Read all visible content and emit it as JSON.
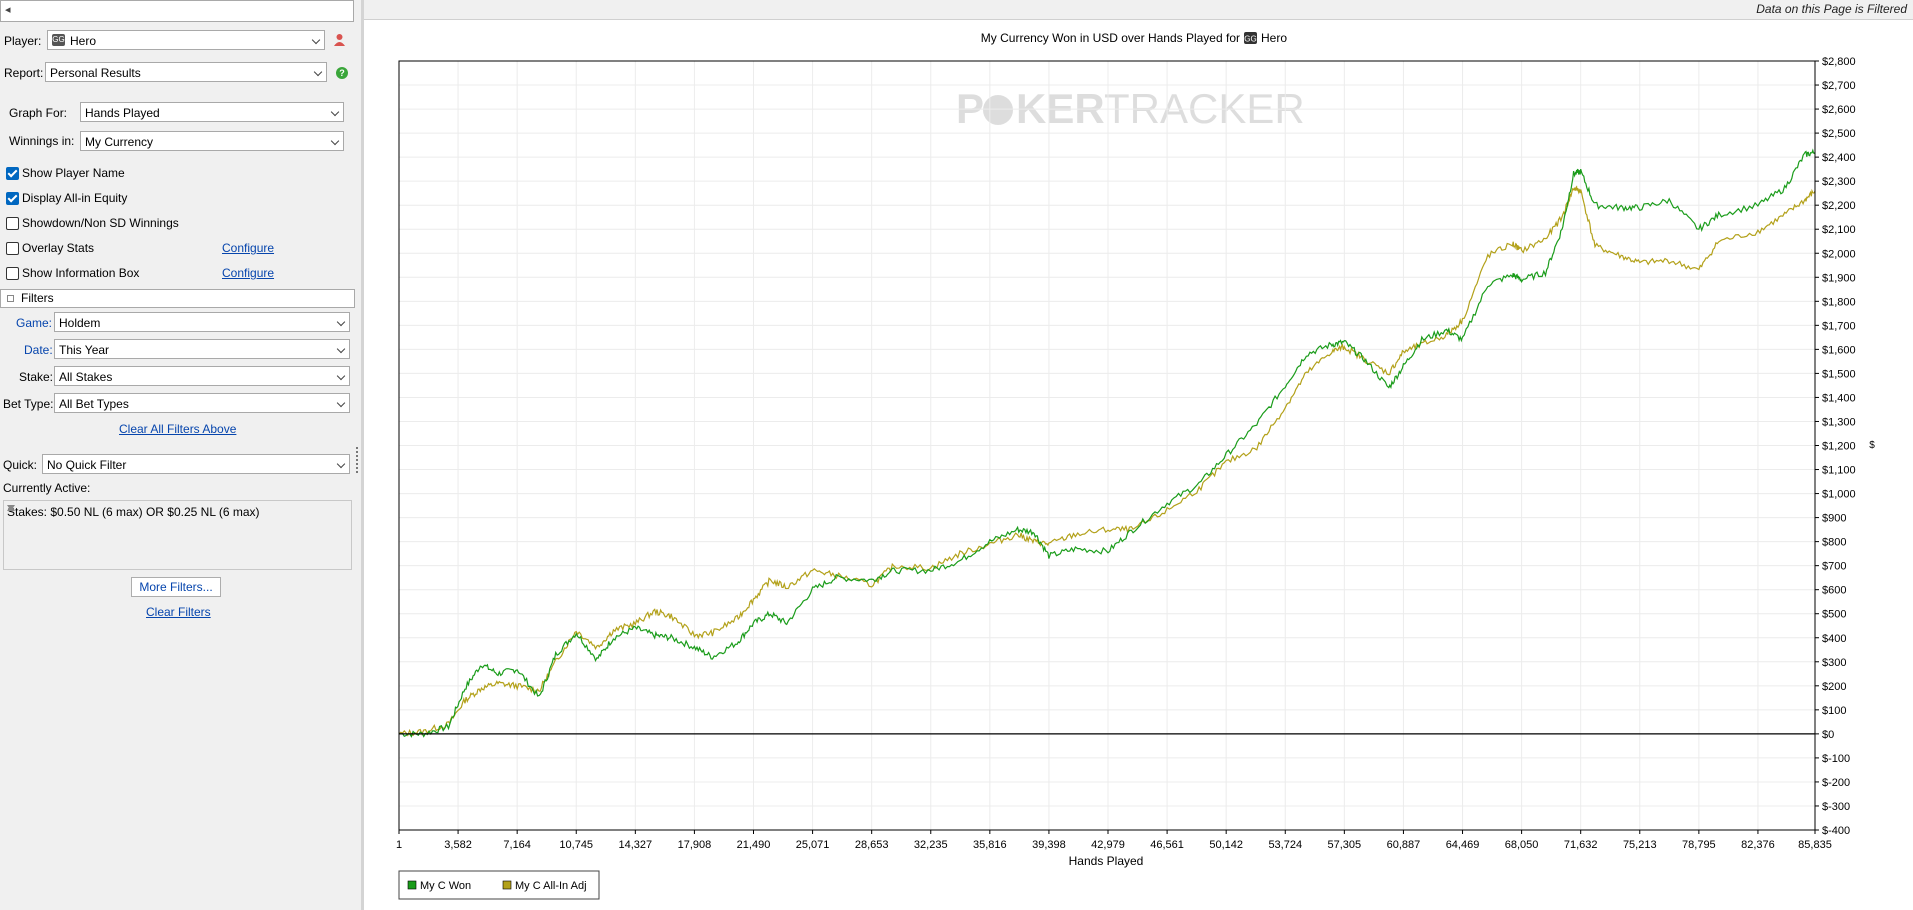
{
  "top_input": {
    "value": "◂"
  },
  "panel": {
    "player_label": "Player:",
    "player_value": "Hero",
    "player_site_icon": "GG",
    "report_label": "Report:",
    "report_value": "Personal Results",
    "graph_for_label": "Graph For:",
    "graph_for_value": "Hands Played",
    "winnings_label": "Winnings in:",
    "winnings_value": "My Currency",
    "checks": [
      {
        "label": "Show Player Name",
        "checked": true
      },
      {
        "label": "Display All-in Equity",
        "checked": true
      },
      {
        "label": "Showdown/Non SD Winnings",
        "checked": false
      },
      {
        "label": "Overlay Stats",
        "checked": false
      },
      {
        "label": "Show Information Box",
        "checked": false
      }
    ],
    "configure_label": "Configure",
    "filters_header": "Filters",
    "game_label": "Game:",
    "game_value": "Holdem",
    "date_label": "Date:",
    "date_value": "This Year",
    "stake_label": "Stake:",
    "stake_value": "All Stakes",
    "bettype_label": "Bet Type:",
    "bettype_value": "All Bet Types",
    "clear_all_label": "Clear All Filters Above",
    "quick_label": "Quick:",
    "quick_value": "No Quick Filter",
    "currently_active_label": "Currently Active:",
    "currently_active_text": "Stakes: $0.50 NL (6 max) OR $0.25 NL (6 max)",
    "more_filters_label": "More Filters...",
    "clear_filters_label": "Clear Filters"
  },
  "header": {
    "filtered_notice": "Data on this Page is Filtered"
  },
  "chart_data": {
    "type": "line",
    "title": "My Currency Won in USD over Hands Played for",
    "title_player": "Hero",
    "title_site_icon": "GG",
    "watermark_a": "P",
    "watermark_b": "KER",
    "watermark_c": "TRACKER",
    "xlabel": "Hands Played",
    "ylabel": "$",
    "x_ticks": [
      1,
      3582,
      7164,
      10745,
      14327,
      17908,
      21490,
      25071,
      28653,
      32235,
      35816,
      39398,
      42979,
      46561,
      50142,
      53724,
      57305,
      60887,
      64469,
      68050,
      71632,
      75213,
      78795,
      82376,
      85835
    ],
    "x_tick_labels": [
      "1",
      "3,582",
      "7,164",
      "10,745",
      "14,327",
      "17,908",
      "21,490",
      "25,071",
      "28,653",
      "32,235",
      "35,816",
      "39,398",
      "42,979",
      "46,561",
      "50,142",
      "53,724",
      "57,305",
      "60,887",
      "64,469",
      "68,050",
      "71,632",
      "75,213",
      "78,795",
      "82,376",
      "85,835"
    ],
    "y_ticks": [
      2800,
      2700,
      2600,
      2500,
      2400,
      2300,
      2200,
      2100,
      2000,
      1900,
      1800,
      1700,
      1600,
      1500,
      1400,
      1300,
      1200,
      1100,
      1000,
      900,
      800,
      700,
      600,
      500,
      400,
      300,
      200,
      100,
      0,
      -100,
      -200,
      -300,
      -400
    ],
    "y_tick_labels": [
      "$2,800",
      "$2,700",
      "$2,600",
      "$2,500",
      "$2,400",
      "$2,300",
      "$2,200",
      "$2,100",
      "$2,000",
      "$1,900",
      "$1,800",
      "$1,700",
      "$1,600",
      "$1,500",
      "$1,400",
      "$1,300",
      "$1,200",
      "$1,100",
      "$1,000",
      "$900",
      "$800",
      "$700",
      "$600",
      "$500",
      "$400",
      "$300",
      "$200",
      "$100",
      "$0",
      "$-100",
      "$-200",
      "$-300",
      "$-400"
    ],
    "xlim": [
      1,
      85835
    ],
    "ylim": [
      -400,
      2800
    ],
    "grid": true,
    "legend_position": "bottom-left",
    "series": [
      {
        "name": "My C Won",
        "color": "#1a9c1a",
        "x": [
          1,
          1500,
          3000,
          4000,
          5000,
          6000,
          7164,
          8500,
          9500,
          10745,
          12000,
          13000,
          14327,
          15500,
          16500,
          17908,
          19000,
          20500,
          21490,
          22500,
          23500,
          25071,
          26500,
          28653,
          30000,
          32235,
          34000,
          35816,
          37500,
          38500,
          39398,
          41000,
          42979,
          44500,
          46561,
          48500,
          50142,
          52000,
          53724,
          55000,
          56500,
          57305,
          58500,
          60000,
          60887,
          62000,
          63500,
          64469,
          66000,
          67500,
          68050,
          69500,
          70500,
          71200,
          71632,
          72500,
          74000,
          75213,
          77000,
          78795,
          80000,
          82376,
          84000,
          85200,
          85835
        ],
        "y": [
          0,
          0,
          30,
          190,
          290,
          250,
          270,
          150,
          330,
          420,
          310,
          400,
          440,
          410,
          400,
          360,
          320,
          380,
          460,
          500,
          460,
          600,
          650,
          640,
          680,
          680,
          720,
          800,
          850,
          840,
          740,
          770,
          760,
          850,
          960,
          1040,
          1160,
          1290,
          1450,
          1580,
          1620,
          1630,
          1560,
          1440,
          1530,
          1640,
          1680,
          1640,
          1870,
          1910,
          1890,
          1920,
          2100,
          2330,
          2340,
          2200,
          2190,
          2190,
          2220,
          2100,
          2160,
          2200,
          2270,
          2410,
          2420
        ]
      },
      {
        "name": "My C All-In Adj",
        "color": "#b3a11a",
        "x": [
          1,
          1500,
          3000,
          4000,
          5000,
          6000,
          7164,
          8500,
          9500,
          10745,
          12000,
          13000,
          14327,
          15500,
          16500,
          17908,
          19000,
          20500,
          21490,
          22500,
          23500,
          25071,
          26500,
          28653,
          30000,
          32235,
          34000,
          35816,
          37500,
          38500,
          39398,
          41000,
          42979,
          44500,
          46561,
          48500,
          50142,
          52000,
          53724,
          55000,
          56500,
          57305,
          58500,
          60000,
          60887,
          62000,
          63500,
          64469,
          66000,
          67500,
          68050,
          69500,
          70500,
          71200,
          71632,
          72500,
          74000,
          75213,
          77000,
          78795,
          80000,
          82376,
          84000,
          85200,
          85835
        ],
        "y": [
          0,
          10,
          40,
          140,
          190,
          210,
          200,
          180,
          300,
          430,
          360,
          430,
          460,
          510,
          490,
          410,
          420,
          480,
          560,
          640,
          610,
          680,
          660,
          620,
          700,
          690,
          750,
          790,
          830,
          800,
          790,
          830,
          850,
          850,
          930,
          1020,
          1130,
          1190,
          1360,
          1500,
          1590,
          1610,
          1560,
          1500,
          1590,
          1620,
          1660,
          1720,
          1990,
          2040,
          2010,
          2060,
          2150,
          2270,
          2260,
          2030,
          1990,
          1960,
          1970,
          1930,
          2050,
          2090,
          2160,
          2220,
          2260
        ]
      }
    ]
  }
}
